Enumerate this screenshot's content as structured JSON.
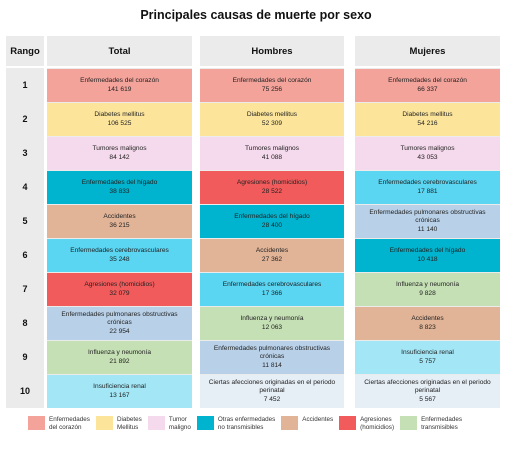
{
  "title": "Principales causas de muerte por sexo",
  "headers": {
    "rank": "Rango",
    "total": "Total",
    "men": "Hombres",
    "women": "Mujeres"
  },
  "colors": {
    "corazon": "#f4a39b",
    "diabetes": "#fce59b",
    "tumor": "#f5d9ec",
    "otras": "#00b4cf",
    "accidentes": "#e1b498",
    "agresiones": "#f25b5c",
    "transmisibles": "#c6e0b5",
    "otras_panel_light": "#5ad5f2",
    "pulmonares": "#b9d1e8",
    "insuficiencia": "#a3e7f7",
    "perinatal": "#e6eef6"
  },
  "legend": [
    {
      "label": "Enfermedades\ndel corazón",
      "color": "#f4a39b"
    },
    {
      "label": "Diabetes\nMellitus",
      "color": "#fce59b"
    },
    {
      "label": "Tumor\nmaligno",
      "color": "#f5d9ec"
    },
    {
      "label": "Otras enfermedades\nno transmisibles",
      "color": "#00b4cf"
    },
    {
      "label": "Accidentes",
      "color": "#e1b498"
    },
    {
      "label": "Agresiones\n(homicidios)",
      "color": "#f25b5c"
    },
    {
      "label": "Enfermedades\ntransmisibles",
      "color": "#c6e0b5"
    }
  ],
  "chart_data": {
    "type": "table",
    "title": "Principales causas de muerte por sexo",
    "columns": [
      "Rango",
      "Total",
      "Hombres",
      "Mujeres"
    ],
    "ranks": [
      "1",
      "2",
      "3",
      "4",
      "5",
      "6",
      "7",
      "8",
      "9",
      "10"
    ],
    "total": [
      {
        "cause": "Enfermedades del corazón",
        "value": "141 619",
        "color": "#f4a39b"
      },
      {
        "cause": "Diabetes mellitus",
        "value": "106 525",
        "color": "#fce59b"
      },
      {
        "cause": "Tumores malignos",
        "value": "84 142",
        "color": "#f5d9ec"
      },
      {
        "cause": "Enfermedades del hígado",
        "value": "38 833",
        "color": "#00b4cf"
      },
      {
        "cause": "Accidentes",
        "value": "36 215",
        "color": "#e1b498"
      },
      {
        "cause": "Enfermedades cerebrovasculares",
        "value": "35 248",
        "color": "#5ad5f2"
      },
      {
        "cause": "Agresiones (homicidios)",
        "value": "32 079",
        "color": "#f25b5c"
      },
      {
        "cause": "Enfermedades pulmonares obstructivas crónicas",
        "value": "22 954",
        "color": "#b9d1e8"
      },
      {
        "cause": "Influenza y neumonía",
        "value": "21 892",
        "color": "#c6e0b5"
      },
      {
        "cause": "Insuficiencia renal",
        "value": "13 167",
        "color": "#a3e7f7"
      }
    ],
    "men": [
      {
        "cause": "Enfermedades del corazón",
        "value": "75 256",
        "color": "#f4a39b"
      },
      {
        "cause": "Diabetes mellitus",
        "value": "52 309",
        "color": "#fce59b"
      },
      {
        "cause": "Tumores malignos",
        "value": "41 088",
        "color": "#f5d9ec"
      },
      {
        "cause": "Agresiones (homicidios)",
        "value": "28 522",
        "color": "#f25b5c"
      },
      {
        "cause": "Enfermedades del hígado",
        "value": "28 400",
        "color": "#00b4cf"
      },
      {
        "cause": "Accidentes",
        "value": "27 362",
        "color": "#e1b498"
      },
      {
        "cause": "Enfermedades cerebrovasculares",
        "value": "17 366",
        "color": "#5ad5f2"
      },
      {
        "cause": "Influenza y neumonía",
        "value": "12 063",
        "color": "#c6e0b5"
      },
      {
        "cause": "Enfermedades pulmonares obstructivas crónicas",
        "value": "11 814",
        "color": "#b9d1e8"
      },
      {
        "cause": "Ciertas afecciones originadas en el periodo perinatal",
        "value": "7 452",
        "color": "#e6eef6"
      }
    ],
    "women": [
      {
        "cause": "Enfermedades del corazón",
        "value": "66 337",
        "color": "#f4a39b"
      },
      {
        "cause": "Diabetes mellitus",
        "value": "54 216",
        "color": "#fce59b"
      },
      {
        "cause": "Tumores malignos",
        "value": "43 053",
        "color": "#f5d9ec"
      },
      {
        "cause": "Enfermedades cerebrovasculares",
        "value": "17 881",
        "color": "#5ad5f2"
      },
      {
        "cause": "Enfermedades pulmonares obstructivas crónicas",
        "value": "11 140",
        "color": "#b9d1e8"
      },
      {
        "cause": "Enfermedades del hígado",
        "value": "10 418",
        "color": "#00b4cf"
      },
      {
        "cause": "Influenza y neumonía",
        "value": "9 828",
        "color": "#c6e0b5"
      },
      {
        "cause": "Accidentes",
        "value": "8 823",
        "color": "#e1b498"
      },
      {
        "cause": "Insuficiencia renal",
        "value": "5 757",
        "color": "#a3e7f7"
      },
      {
        "cause": "Ciertas afecciones originadas en el periodo perinatal",
        "value": "5 567",
        "color": "#e6eef6"
      }
    ]
  }
}
